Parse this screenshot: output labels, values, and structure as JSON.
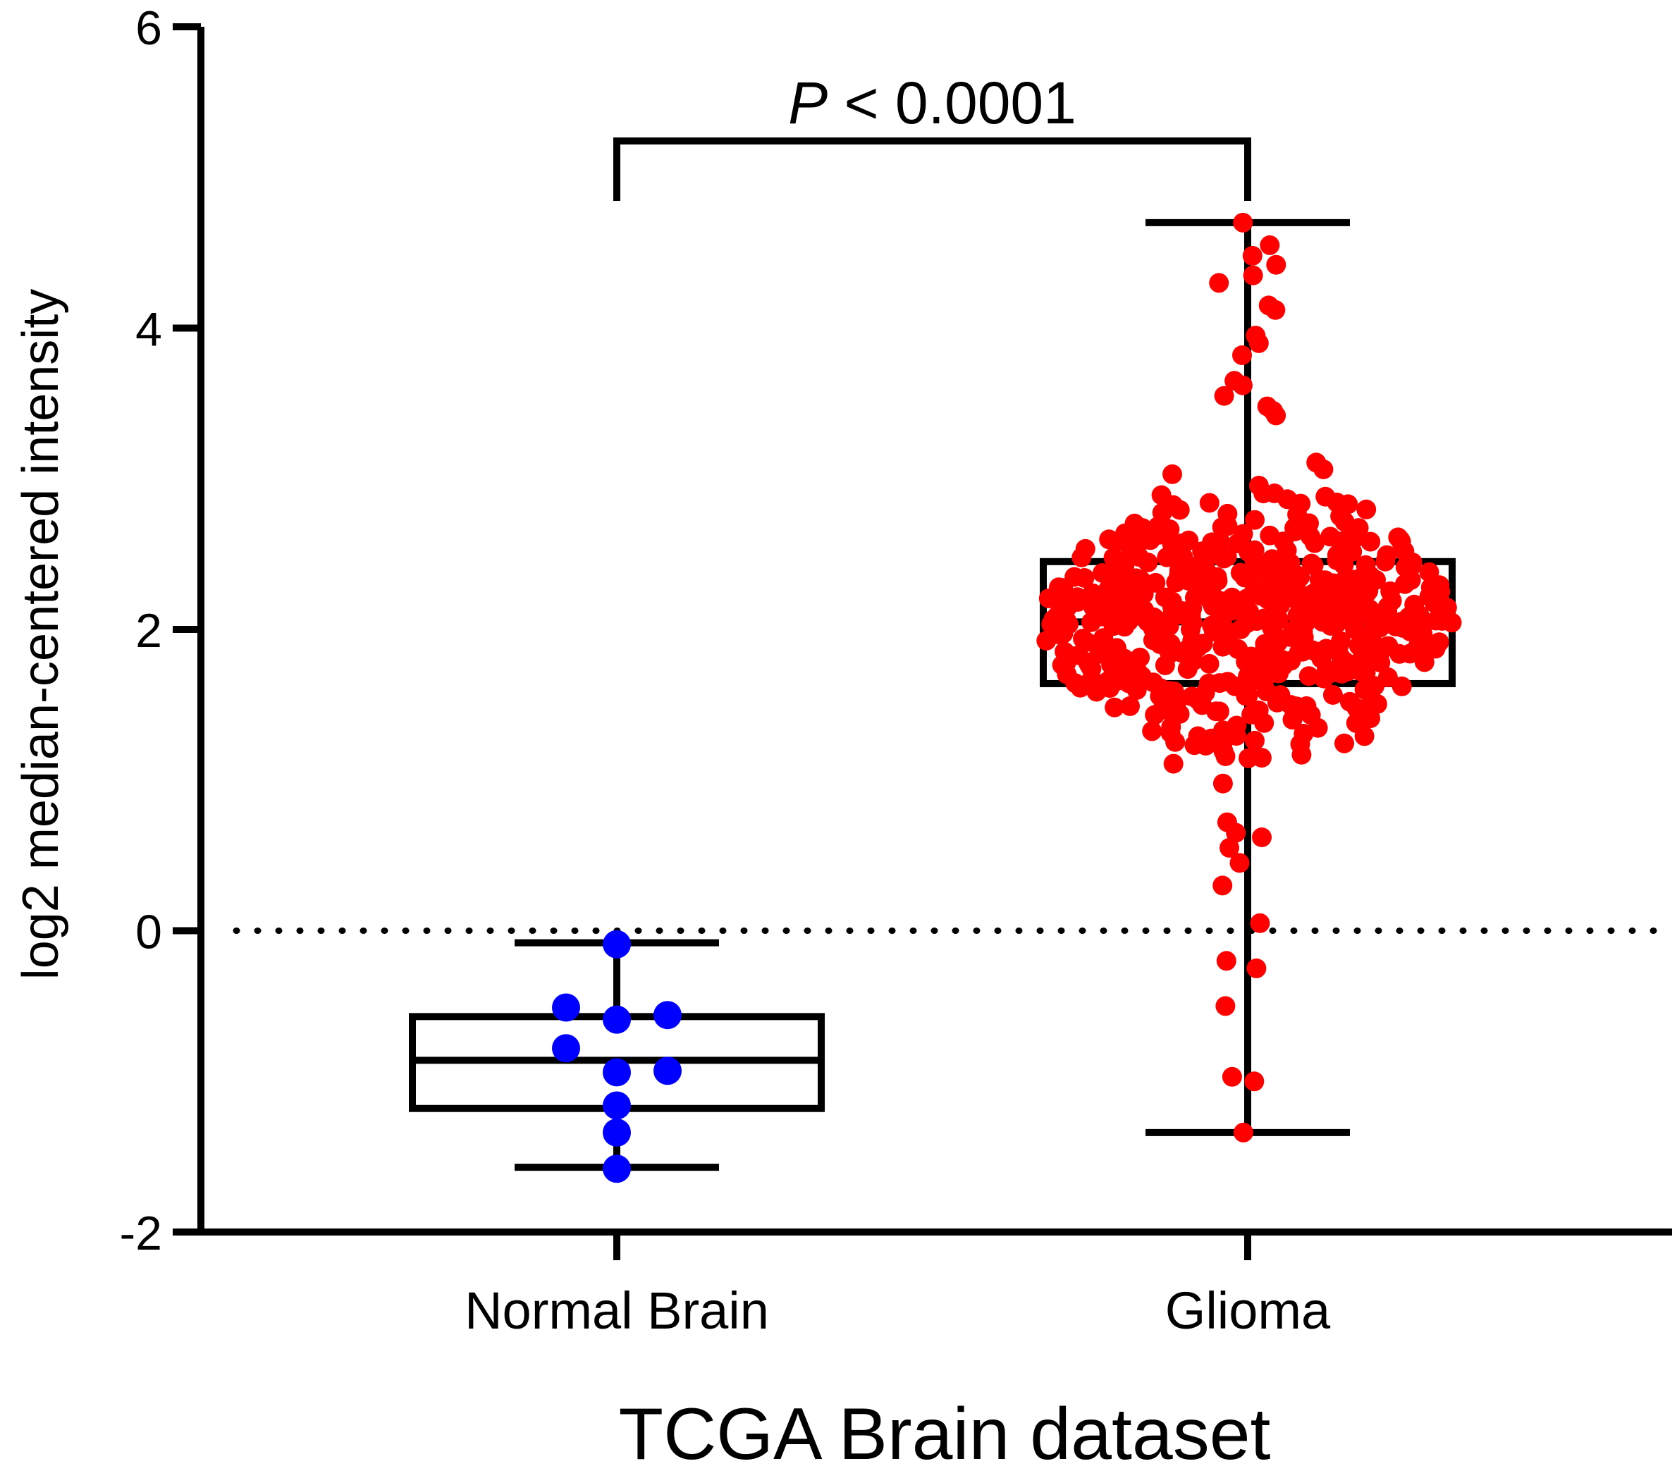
{
  "chart_data": {
    "type": "box-swarm",
    "xlabel": "TCGA Brain dataset",
    "ylabel": "log2 median-centered intensity",
    "ylim": [
      -2,
      6
    ],
    "yticks": [
      -2,
      0,
      2,
      4,
      6
    ],
    "reference_line": {
      "y": 0,
      "style": "dotted"
    },
    "categories": [
      "Normal Brain",
      "Glioma"
    ],
    "groups": [
      {
        "name": "Normal Brain",
        "color": "#0000ff",
        "box": {
          "min": -1.57,
          "q1": -1.18,
          "median": -0.86,
          "q3": -0.57,
          "max": -0.08
        },
        "points": [
          -0.09,
          -0.51,
          -0.56,
          -0.59,
          -0.78,
          -0.93,
          -0.94,
          -1.16,
          -1.34,
          -1.58
        ]
      },
      {
        "name": "Glioma",
        "color": "#ff0000",
        "box": {
          "min": -1.34,
          "q1": 1.64,
          "median": 2.05,
          "q3": 2.45,
          "max": 4.7
        },
        "swarm_note_n": 160
      }
    ],
    "annotations": [
      {
        "text_italic": "P",
        "text": " < 0.0001",
        "between": [
          "Normal Brain",
          "Glioma"
        ]
      }
    ]
  }
}
